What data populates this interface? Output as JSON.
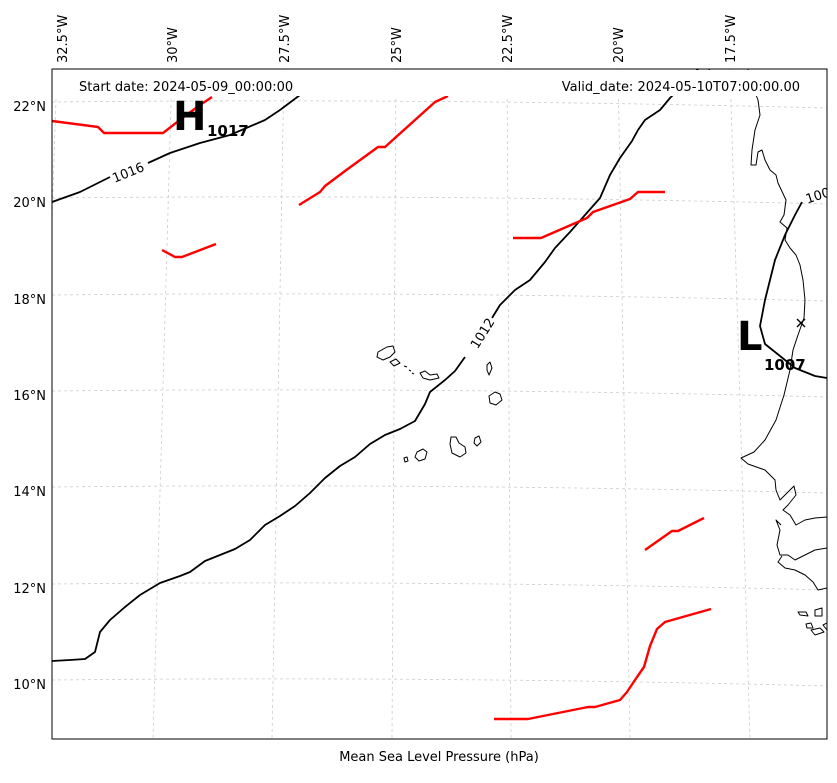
{
  "header": {
    "start_date": "Start date: 2024-05-09_00:00:00",
    "valid_date": "Valid_date: 2024-05-10T07:00:00.00"
  },
  "caption": "Mean Sea Level Pressure (hPa)",
  "lon_labels": [
    "32.5°W",
    "30°W",
    "27.5°W",
    "25°W",
    "22.5°W",
    "20°W",
    "17.5°W"
  ],
  "lat_labels": [
    "22°N",
    "20°N",
    "18°N",
    "16°N",
    "14°N",
    "12°N",
    "10°N"
  ],
  "isobars": [
    {
      "label": "1016"
    },
    {
      "label": "1012"
    },
    {
      "label": "100"
    }
  ],
  "systems": [
    {
      "letter": "H",
      "value": "1017"
    },
    {
      "letter": "L",
      "value": "1007"
    }
  ],
  "colors": {
    "isobar": "#000000",
    "front": "#ff0000",
    "grid": "#cccccc",
    "coast": "#000000"
  }
}
